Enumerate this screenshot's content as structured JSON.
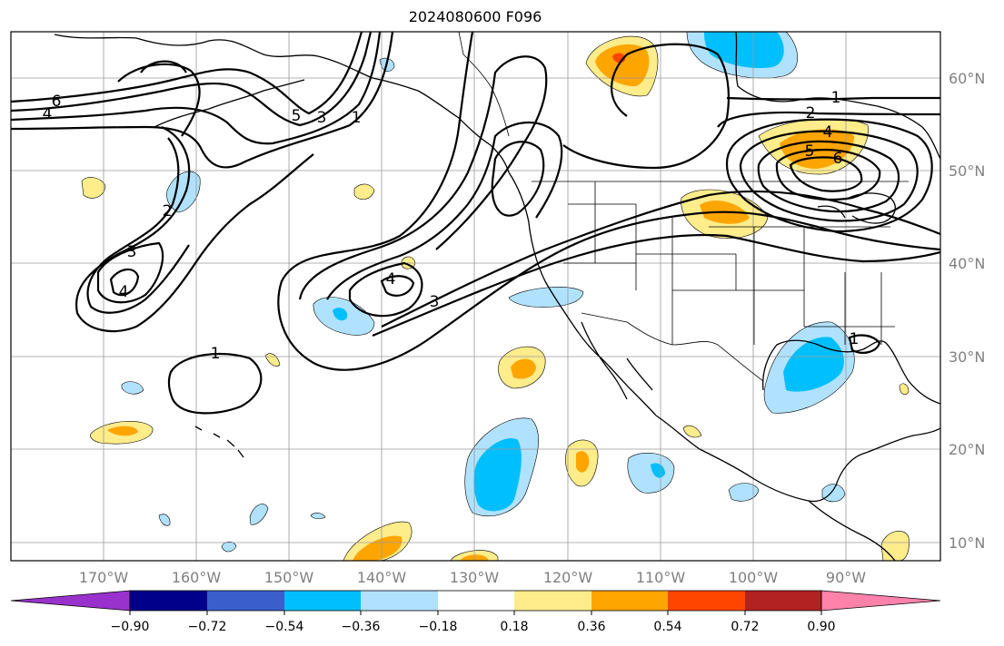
{
  "title": "2024080600 F096",
  "latitude_labels": [
    "60°N",
    "50°N",
    "40°N",
    "30°N",
    "20°N",
    "10°N"
  ],
  "longitude_labels": [
    "170°W",
    "160°W",
    "150°W",
    "140°W",
    "130°W",
    "120°W",
    "110°W",
    "100°W",
    "90°W"
  ],
  "colorbar": {
    "tick_labels": [
      "−0.90",
      "−0.72",
      "−0.54",
      "−0.36",
      "−0.18",
      "0.18",
      "0.36",
      "0.54",
      "0.72",
      "0.90"
    ],
    "colors": {
      "under": "#9932cc",
      "neg_090_072": "#00008b",
      "neg_072_054": "#3a5fcd",
      "neg_054_036": "#00bfff",
      "neg_036_018": "#b0e2ff",
      "neutral": "#ffffff",
      "pos_018_036": "#ffec8b",
      "pos_036_054": "#ffa500",
      "pos_054_072": "#ff4500",
      "pos_072_090": "#b22222",
      "over": "#ff82ab"
    },
    "extend": "both"
  },
  "contour_labels": [
    "6",
    "4",
    "5",
    "3",
    "1",
    "2",
    "3",
    "4",
    "1",
    "4",
    "3",
    "1",
    "2",
    "4",
    "5",
    "6",
    "1"
  ],
  "layers": {
    "contour_color": "#000000",
    "coastline_color": "#000000",
    "gridline_color": "#9a9a9a",
    "background": "#ffffff"
  }
}
